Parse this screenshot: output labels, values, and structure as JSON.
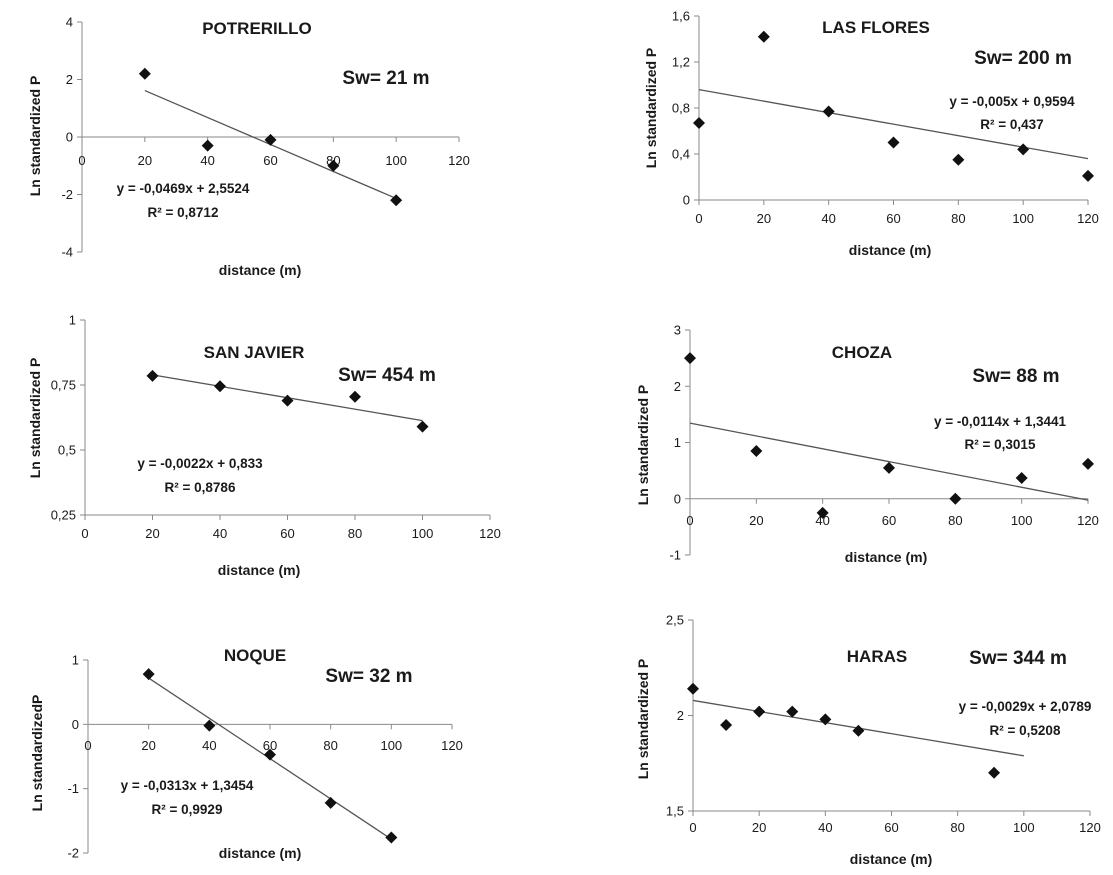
{
  "chart_data": [
    {
      "type": "scatter",
      "title": "POTRERILLO",
      "sw": "Sw= 21 m",
      "xlabel": "distance (m)",
      "ylabel": "Ln  standardized P",
      "xlim": [
        0,
        120
      ],
      "ylim": [
        -4,
        4
      ],
      "xticks": [
        0,
        20,
        40,
        60,
        80,
        100,
        120
      ],
      "xtick_labels": [
        "0",
        "20",
        "40",
        "60",
        "80",
        "100",
        "120"
      ],
      "yticks": [
        -4,
        -2,
        0,
        2,
        4
      ],
      "ytick_labels": [
        "-4",
        "-2",
        "0",
        "2",
        "4"
      ],
      "x": [
        20,
        40,
        60,
        80,
        100
      ],
      "y": [
        2.2,
        -0.3,
        -0.1,
        -1.0,
        -2.2
      ],
      "trendline": {
        "slope": -0.0469,
        "intercept": 2.5524,
        "x_range": [
          20,
          100
        ]
      },
      "equation": "y = -0,0469x + 2,5524",
      "r2": "R² = 0,8712"
    },
    {
      "type": "scatter",
      "title": "LAS FLORES",
      "sw": "Sw= 200 m",
      "xlabel": "distance (m)",
      "ylabel": "Ln  standardized P",
      "xlim": [
        0,
        120
      ],
      "ylim": [
        0,
        1.6
      ],
      "xticks": [
        0,
        20,
        40,
        60,
        80,
        100,
        120
      ],
      "xtick_labels": [
        "0",
        "20",
        "40",
        "60",
        "80",
        "100",
        "120"
      ],
      "yticks": [
        0,
        0.4,
        0.8,
        1.2,
        1.6
      ],
      "ytick_labels": [
        "0",
        "0,4",
        "0,8",
        "1,2",
        "1,6"
      ],
      "x": [
        0,
        20,
        40,
        60,
        80,
        100,
        120
      ],
      "y": [
        0.67,
        1.42,
        0.77,
        0.5,
        0.35,
        0.44,
        0.21
      ],
      "trendline": {
        "slope": -0.005,
        "intercept": 0.9594,
        "x_range": [
          0,
          120
        ]
      },
      "equation": "y = -0,005x + 0,9594",
      "r2": "R² = 0,437"
    },
    {
      "type": "scatter",
      "title": "SAN JAVIER",
      "sw": "Sw= 454 m",
      "xlabel": "distance (m)",
      "ylabel": "Ln  standardized P",
      "xlim": [
        0,
        120
      ],
      "ylim": [
        0.25,
        1
      ],
      "xticks": [
        0,
        20,
        40,
        60,
        80,
        100,
        120
      ],
      "xtick_labels": [
        "0",
        "20",
        "40",
        "60",
        "80",
        "100",
        "120"
      ],
      "yticks": [
        0.25,
        0.5,
        0.75,
        1
      ],
      "ytick_labels": [
        "0,25",
        "0,5",
        "0,75",
        "1"
      ],
      "x": [
        20,
        40,
        60,
        80,
        100
      ],
      "y": [
        0.785,
        0.745,
        0.69,
        0.705,
        0.59
      ],
      "trendline": {
        "slope": -0.0022,
        "intercept": 0.833,
        "x_range": [
          20,
          100
        ]
      },
      "equation": "y = -0,0022x + 0,833",
      "r2": "R² = 0,8786"
    },
    {
      "type": "scatter",
      "title": "CHOZA",
      "sw": "Sw= 88 m",
      "xlabel": "distance (m)",
      "ylabel": "Ln  standardized P",
      "xlim": [
        0,
        120
      ],
      "ylim": [
        -1,
        3
      ],
      "xticks": [
        0,
        20,
        40,
        60,
        80,
        100,
        120
      ],
      "xtick_labels": [
        "0",
        "20",
        "40",
        "60",
        "80",
        "100",
        "120"
      ],
      "yticks": [
        -1,
        0,
        1,
        2,
        3
      ],
      "ytick_labels": [
        "-1",
        "0",
        "1",
        "2",
        "3"
      ],
      "x": [
        0,
        20,
        40,
        60,
        80,
        100,
        120
      ],
      "y": [
        2.5,
        0.85,
        -0.25,
        0.55,
        0.0,
        0.37,
        0.62
      ],
      "trendline": {
        "slope": -0.0114,
        "intercept": 1.3441,
        "x_range": [
          0,
          120
        ]
      },
      "equation": "y = -0,0114x + 1,3441",
      "r2": "R² = 0,3015"
    },
    {
      "type": "scatter",
      "title": "NOQUE",
      "sw": "Sw= 32 m",
      "xlabel": "distance (m)",
      "ylabel": "Ln  standardizedP",
      "xlim": [
        0,
        120
      ],
      "ylim": [
        -2,
        1
      ],
      "xticks": [
        0,
        20,
        40,
        60,
        80,
        100,
        120
      ],
      "xtick_labels": [
        "0",
        "20",
        "40",
        "60",
        "80",
        "100",
        "120"
      ],
      "yticks": [
        -2,
        -1,
        0,
        1
      ],
      "ytick_labels": [
        "-2",
        "-1",
        "0",
        "1"
      ],
      "x": [
        20,
        40,
        60,
        80,
        100
      ],
      "y": [
        0.78,
        -0.02,
        -0.47,
        -1.22,
        -1.76
      ],
      "trendline": {
        "slope": -0.0313,
        "intercept": 1.3454,
        "x_range": [
          20,
          100
        ]
      },
      "equation": "y = -0,0313x + 1,3454",
      "r2": "R² = 0,9929"
    },
    {
      "type": "scatter",
      "title": "HARAS",
      "sw": "Sw= 344 m",
      "xlabel": "distance (m)",
      "ylabel": "Ln  standardized P",
      "xlim": [
        0,
        120
      ],
      "ylim": [
        1.5,
        2.5
      ],
      "xticks": [
        0,
        20,
        40,
        60,
        80,
        100,
        120
      ],
      "xtick_labels": [
        "0",
        "20",
        "40",
        "60",
        "80",
        "100",
        "120"
      ],
      "yticks": [
        1.5,
        2,
        2.5
      ],
      "ytick_labels": [
        "1,5",
        "2",
        "2,5"
      ],
      "x": [
        0,
        10,
        20,
        30,
        40,
        50,
        91
      ],
      "y": [
        2.14,
        1.95,
        2.02,
        2.02,
        1.98,
        1.92,
        1.7
      ],
      "trendline": {
        "slope": -0.0029,
        "intercept": 2.0789,
        "x_range": [
          0,
          100
        ]
      },
      "equation": "y = -0,0029x + 2,0789",
      "r2": "R² = 0,5208"
    }
  ]
}
